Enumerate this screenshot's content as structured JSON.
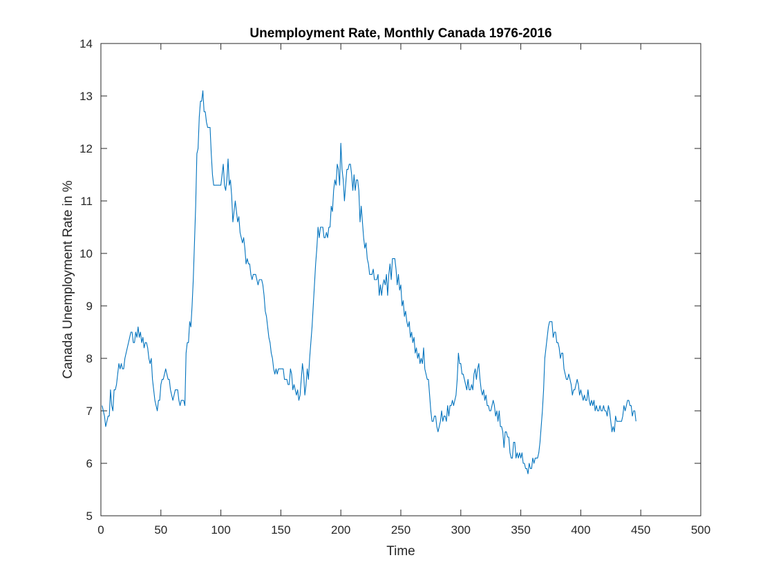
{
  "chart_data": {
    "type": "line",
    "title": "Unemployment Rate, Monthly Canada 1976-2016",
    "xlabel": "Time",
    "ylabel": "Canada Unemployment Rate in %",
    "xlim": [
      0,
      500
    ],
    "ylim": [
      5,
      14
    ],
    "xticks": [
      0,
      50,
      100,
      150,
      200,
      250,
      300,
      350,
      400,
      450,
      500
    ],
    "yticks": [
      5,
      6,
      7,
      8,
      9,
      10,
      11,
      12,
      13,
      14
    ],
    "grid": false,
    "box": true,
    "line_color": "#0072BD",
    "series": [
      {
        "name": "Unemployment Rate",
        "x_start": 1,
        "x_step": 1,
        "values": [
          7.1,
          7.0,
          6.9,
          6.7,
          6.8,
          6.9,
          6.9,
          7.4,
          7.1,
          7.0,
          7.4,
          7.4,
          7.5,
          7.7,
          7.9,
          7.8,
          7.9,
          7.8,
          7.8,
          8.0,
          8.1,
          8.2,
          8.3,
          8.4,
          8.5,
          8.5,
          8.3,
          8.3,
          8.5,
          8.4,
          8.6,
          8.4,
          8.5,
          8.3,
          8.4,
          8.2,
          8.3,
          8.3,
          8.2,
          8.0,
          7.9,
          8.0,
          7.6,
          7.4,
          7.2,
          7.1,
          7.0,
          7.2,
          7.2,
          7.5,
          7.6,
          7.6,
          7.7,
          7.8,
          7.7,
          7.6,
          7.6,
          7.4,
          7.3,
          7.2,
          7.3,
          7.4,
          7.4,
          7.4,
          7.2,
          7.1,
          7.2,
          7.2,
          7.2,
          7.1,
          8.1,
          8.3,
          8.3,
          8.7,
          8.6,
          9.0,
          9.5,
          10.2,
          10.9,
          11.9,
          12.0,
          12.6,
          12.9,
          12.9,
          13.1,
          12.7,
          12.7,
          12.5,
          12.4,
          12.4,
          12.4,
          11.9,
          11.5,
          11.3,
          11.3,
          11.3,
          11.3,
          11.3,
          11.3,
          11.3,
          11.5,
          11.7,
          11.3,
          11.2,
          11.4,
          11.8,
          11.3,
          11.4,
          11.1,
          10.6,
          10.8,
          11.0,
          10.8,
          10.6,
          10.7,
          10.4,
          10.3,
          10.2,
          10.3,
          10.1,
          9.8,
          9.9,
          9.8,
          9.8,
          9.6,
          9.5,
          9.6,
          9.6,
          9.6,
          9.5,
          9.4,
          9.5,
          9.5,
          9.5,
          9.4,
          9.2,
          8.9,
          8.8,
          8.6,
          8.4,
          8.3,
          8.1,
          8.0,
          7.8,
          7.7,
          7.8,
          7.7,
          7.8,
          7.8,
          7.8,
          7.8,
          7.8,
          7.6,
          7.6,
          7.6,
          7.5,
          7.5,
          7.8,
          7.7,
          7.4,
          7.5,
          7.4,
          7.3,
          7.4,
          7.2,
          7.3,
          7.6,
          7.9,
          7.7,
          7.3,
          7.5,
          7.8,
          7.6,
          8.0,
          8.3,
          8.6,
          9.0,
          9.4,
          9.8,
          10.1,
          10.5,
          10.3,
          10.5,
          10.5,
          10.5,
          10.3,
          10.3,
          10.4,
          10.3,
          10.5,
          10.5,
          10.9,
          10.8,
          11.2,
          11.4,
          11.3,
          11.7,
          11.6,
          11.3,
          12.1,
          11.6,
          11.4,
          11.0,
          11.3,
          11.6,
          11.6,
          11.7,
          11.7,
          11.5,
          11.2,
          11.5,
          11.2,
          11.4,
          11.4,
          11.2,
          10.6,
          10.9,
          10.6,
          10.3,
          10.1,
          10.2,
          9.9,
          9.8,
          9.6,
          9.6,
          9.6,
          9.7,
          9.5,
          9.5,
          9.5,
          9.6,
          9.2,
          9.4,
          9.2,
          9.4,
          9.5,
          9.4,
          9.6,
          9.2,
          9.6,
          9.8,
          9.5,
          9.9,
          9.9,
          9.9,
          9.7,
          9.4,
          9.6,
          9.3,
          9.4,
          9.0,
          9.1,
          8.8,
          8.9,
          8.7,
          8.6,
          8.7,
          8.4,
          8.5,
          8.3,
          8.4,
          8.1,
          8.2,
          8.0,
          8.1,
          7.9,
          8.0,
          7.9,
          8.2,
          7.8,
          7.7,
          7.6,
          7.6,
          7.3,
          7.0,
          6.8,
          6.8,
          6.9,
          6.9,
          6.7,
          6.6,
          6.7,
          6.8,
          7.0,
          6.8,
          6.9,
          6.9,
          6.8,
          7.1,
          6.9,
          7.1,
          7.1,
          7.2,
          7.1,
          7.2,
          7.3,
          7.6,
          8.1,
          7.9,
          7.9,
          7.7,
          7.7,
          7.6,
          7.5,
          7.4,
          7.6,
          7.4,
          7.4,
          7.5,
          7.4,
          7.7,
          7.8,
          7.6,
          7.8,
          7.9,
          7.6,
          7.4,
          7.3,
          7.4,
          7.2,
          7.3,
          7.1,
          7.1,
          7.0,
          7.0,
          7.1,
          7.2,
          7.1,
          6.9,
          7.0,
          6.8,
          7.0,
          6.7,
          6.7,
          6.6,
          6.3,
          6.6,
          6.6,
          6.5,
          6.5,
          6.2,
          6.1,
          6.1,
          6.4,
          6.4,
          6.1,
          6.2,
          6.1,
          6.2,
          6.1,
          6.2,
          6.0,
          6.0,
          5.9,
          5.9,
          5.8,
          6.0,
          5.9,
          5.9,
          6.1,
          6.0,
          6.1,
          6.1,
          6.1,
          6.2,
          6.4,
          6.7,
          7.0,
          7.4,
          8.0,
          8.2,
          8.4,
          8.6,
          8.7,
          8.7,
          8.7,
          8.4,
          8.5,
          8.5,
          8.3,
          8.3,
          8.2,
          8.0,
          8.1,
          8.1,
          7.8,
          7.7,
          7.6,
          7.6,
          7.7,
          7.6,
          7.5,
          7.3,
          7.4,
          7.4,
          7.5,
          7.6,
          7.5,
          7.3,
          7.4,
          7.3,
          7.2,
          7.3,
          7.2,
          7.2,
          7.4,
          7.2,
          7.1,
          7.2,
          7.1,
          7.2,
          7.0,
          7.1,
          7.0,
          7.0,
          7.1,
          7.0,
          7.0,
          7.1,
          7.0,
          7.0,
          6.9,
          7.1,
          7.0,
          6.8,
          6.6,
          6.7,
          6.6,
          6.9,
          6.8,
          6.8,
          6.8,
          6.8,
          6.8,
          6.9,
          7.1,
          7.0,
          7.1,
          7.2,
          7.2,
          7.1,
          7.1,
          6.9,
          7.0,
          7.0,
          6.8
        ]
      }
    ]
  }
}
